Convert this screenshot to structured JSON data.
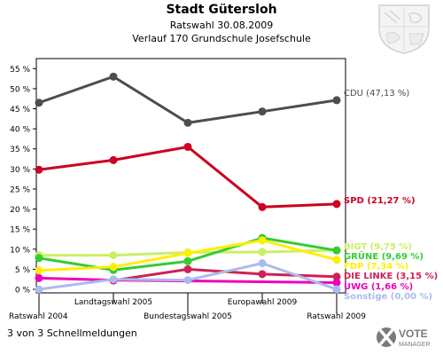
{
  "header": {
    "title": "Stadt Gütersloh",
    "subtitle": "Ratswahl 30.08.2009",
    "subtitle2": "Verlauf 170 Grundschule Josefschule"
  },
  "footer": {
    "text": "3 von 3 Schnellmeldungen"
  },
  "logo": {
    "text_top": "VOTE",
    "text_bottom": "MANAGER"
  },
  "chart_data": {
    "type": "line",
    "categories": [
      "Ratswahl 2004",
      "Landtagswahl 2005",
      "Bundestagswahl 2005",
      "Europawahl 2009",
      "Ratswahl 2009"
    ],
    "ylim": [
      0,
      57.5
    ],
    "yticks": [
      "0 %",
      "5 %",
      "10 %",
      "15 %",
      "20 %",
      "25 %",
      "30 %",
      "35 %",
      "40 %",
      "45 %",
      "50 %",
      "55 %"
    ],
    "grid": false,
    "legend": "right (end-of-line labels)",
    "series": [
      {
        "name": "CDU",
        "label": "CDU (47,13 %)",
        "color": "#4d4d4d",
        "values": [
          46.5,
          53.0,
          41.5,
          44.3,
          47.13
        ]
      },
      {
        "name": "SPD",
        "label": "SPD (21,27 %)",
        "color": "#cc0022",
        "values": [
          29.8,
          32.2,
          35.5,
          20.5,
          21.27
        ]
      },
      {
        "name": "BIGT",
        "label": "BIGT (9,75 %)",
        "color": "#ccee66",
        "values": [
          8.5,
          8.5,
          9.2,
          9.3,
          9.75
        ]
      },
      {
        "name": "GRÜNE",
        "label": "GRÜNE (9,69 %)",
        "color": "#33cc33",
        "values": [
          7.8,
          4.8,
          7.0,
          12.8,
          9.69
        ]
      },
      {
        "name": "FDP",
        "label": "FDP (7,34 %)",
        "color": "#ffee00",
        "values": [
          4.7,
          5.6,
          9.0,
          12.2,
          7.34
        ]
      },
      {
        "name": "DIE LINKE",
        "label": "DIE LINKE (3,15 %)",
        "color": "#cc2255",
        "values": [
          null,
          2.2,
          5.0,
          3.8,
          3.15
        ]
      },
      {
        "name": "UWG",
        "label": "UWG (1,66 %)",
        "color": "#ee00bb",
        "values": [
          2.8,
          2.3,
          null,
          null,
          1.66
        ]
      },
      {
        "name": "Sonstige",
        "label": "Sonstige (0,00 %)",
        "color": "#aabbee",
        "values": [
          0.0,
          2.5,
          2.3,
          6.5,
          0.0
        ]
      }
    ]
  }
}
